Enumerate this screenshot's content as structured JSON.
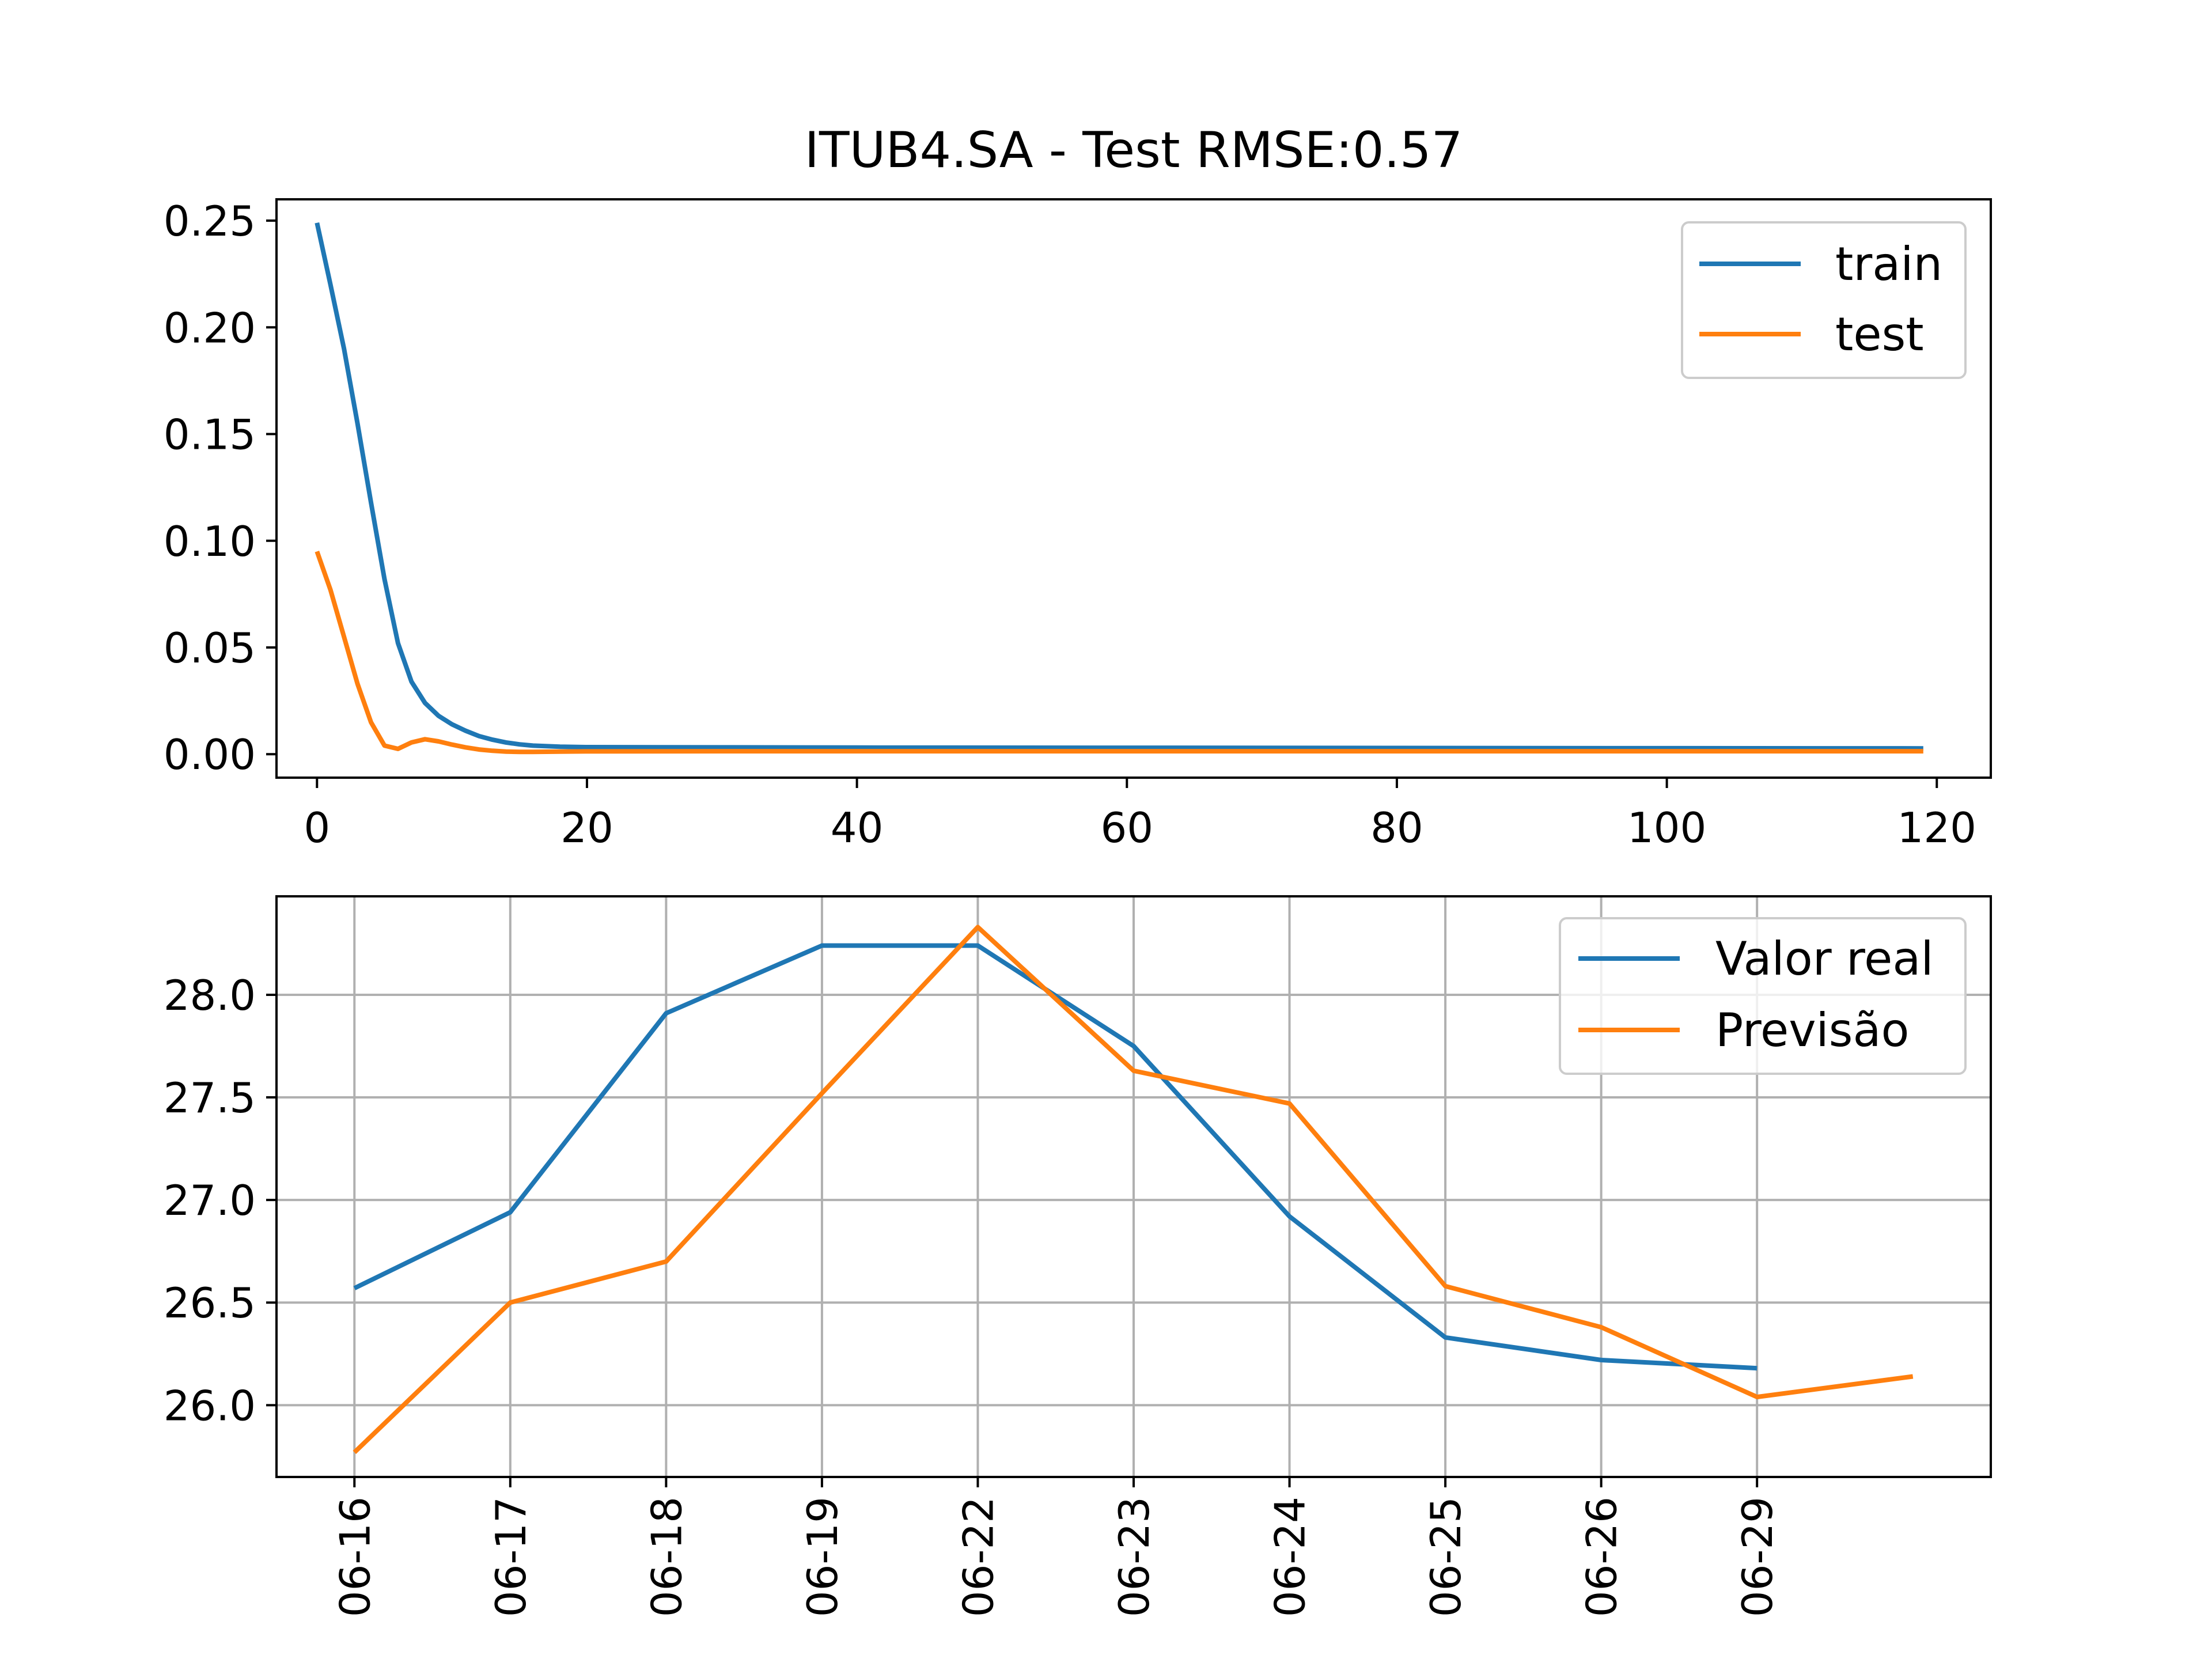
{
  "figure": {
    "title": "ITUB4.SA - Test RMSE:0.57"
  },
  "colors": {
    "series1": "#1f77b4",
    "series2": "#ff7f0e",
    "grid": "#b0b0b0",
    "axes": "#000000",
    "legend_border": "#cccccc"
  },
  "chart_data": [
    {
      "type": "line",
      "title": "ITUB4.SA - Test RMSE:0.57",
      "xlabel": "",
      "ylabel": "",
      "xlim": [
        -3,
        124
      ],
      "ylim": [
        -0.011,
        0.26
      ],
      "xticks": [
        0,
        20,
        40,
        60,
        80,
        100,
        120
      ],
      "xtick_labels": [
        "0",
        "20",
        "40",
        "60",
        "80",
        "100",
        "120"
      ],
      "yticks": [
        0.0,
        0.05,
        0.1,
        0.15,
        0.2,
        0.25
      ],
      "ytick_labels": [
        "0.00",
        "0.05",
        "0.10",
        "0.15",
        "0.20",
        "0.25"
      ],
      "grid": false,
      "legend_position": "upper right",
      "series": [
        {
          "name": "train",
          "color": "#1f77b4",
          "x": [
            0,
            1,
            2,
            3,
            4,
            5,
            6,
            7,
            8,
            9,
            10,
            11,
            12,
            13,
            14,
            15,
            16,
            18,
            20,
            30,
            40,
            60,
            80,
            100,
            119
          ],
          "y": [
            0.249,
            0.22,
            0.19,
            0.155,
            0.118,
            0.082,
            0.052,
            0.034,
            0.024,
            0.018,
            0.014,
            0.011,
            0.0085,
            0.0068,
            0.0055,
            0.0046,
            0.004,
            0.0035,
            0.0033,
            0.0032,
            0.0031,
            0.003,
            0.0029,
            0.0028,
            0.0027
          ]
        },
        {
          "name": "test",
          "color": "#ff7f0e",
          "x": [
            0,
            1,
            2,
            3,
            4,
            5,
            6,
            7,
            8,
            9,
            10,
            11,
            12,
            13,
            14,
            15,
            16,
            18,
            20,
            30,
            40,
            60,
            80,
            100,
            119
          ],
          "y": [
            0.095,
            0.077,
            0.055,
            0.033,
            0.015,
            0.004,
            0.0025,
            0.0055,
            0.007,
            0.006,
            0.0045,
            0.0032,
            0.0022,
            0.0016,
            0.0012,
            0.0011,
            0.0011,
            0.0012,
            0.0013,
            0.0014,
            0.0014,
            0.0014,
            0.0014,
            0.0014,
            0.0014
          ]
        }
      ]
    },
    {
      "type": "line",
      "xlabel": "",
      "ylabel": "",
      "categories": [
        "06-16",
        "06-17",
        "06-18",
        "06-19",
        "06-22",
        "06-23",
        "06-24",
        "06-25",
        "06-26",
        "06-29",
        ""
      ],
      "xlim": [
        -0.5,
        10.5
      ],
      "ylim": [
        25.65,
        28.48
      ],
      "xticks": [
        0,
        1,
        2,
        3,
        4,
        5,
        6,
        7,
        8,
        9
      ],
      "xtick_labels": [
        "06-16",
        "06-17",
        "06-18",
        "06-19",
        "06-22",
        "06-23",
        "06-24",
        "06-25",
        "06-26",
        "06-29"
      ],
      "yticks": [
        26.0,
        26.5,
        27.0,
        27.5,
        28.0
      ],
      "ytick_labels": [
        "26.0",
        "26.5",
        "27.0",
        "27.5",
        "28.0"
      ],
      "grid": true,
      "legend_position": "upper right",
      "series": [
        {
          "name": "Valor real",
          "color": "#1f77b4",
          "x": [
            0,
            1,
            2,
            3,
            4,
            5,
            6,
            7,
            8,
            9
          ],
          "y": [
            26.57,
            26.94,
            27.91,
            28.24,
            28.24,
            27.75,
            26.92,
            26.33,
            26.22,
            26.18
          ]
        },
        {
          "name": "Previsão",
          "color": "#ff7f0e",
          "x": [
            0,
            1,
            2,
            3,
            4,
            5,
            6,
            7,
            8,
            9,
            10
          ],
          "y": [
            25.77,
            26.5,
            26.7,
            27.52,
            28.33,
            27.63,
            27.47,
            26.58,
            26.38,
            26.04,
            26.14
          ]
        }
      ]
    }
  ]
}
